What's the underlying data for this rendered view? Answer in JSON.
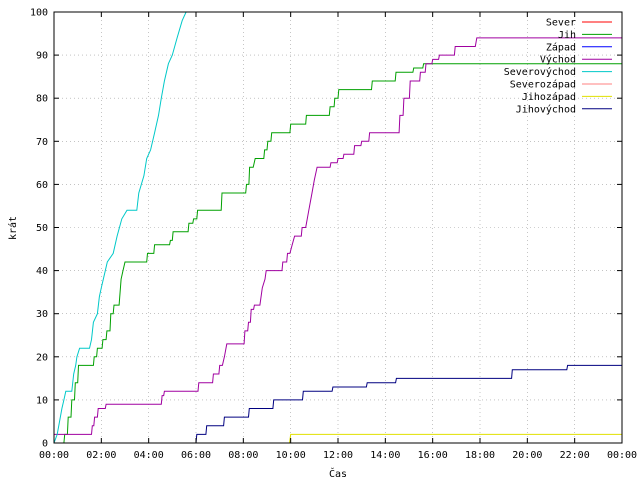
{
  "chart_data": {
    "type": "line",
    "title": "",
    "xlabel": "Čas",
    "ylabel": "krát",
    "xlim": [
      0,
      1440
    ],
    "ylim": [
      0,
      100
    ],
    "x_ticks": [
      {
        "v": 0,
        "label": "00:00"
      },
      {
        "v": 120,
        "label": "02:00"
      },
      {
        "v": 240,
        "label": "04:00"
      },
      {
        "v": 360,
        "label": "06:00"
      },
      {
        "v": 480,
        "label": "08:00"
      },
      {
        "v": 600,
        "label": "10:00"
      },
      {
        "v": 720,
        "label": "12:00"
      },
      {
        "v": 840,
        "label": "14:00"
      },
      {
        "v": 960,
        "label": "16:00"
      },
      {
        "v": 1080,
        "label": "18:00"
      },
      {
        "v": 1200,
        "label": "20:00"
      },
      {
        "v": 1320,
        "label": "22:00"
      },
      {
        "v": 1440,
        "label": "00:00"
      }
    ],
    "y_ticks": [
      0,
      10,
      20,
      30,
      40,
      50,
      60,
      70,
      80,
      90,
      100
    ],
    "grid": true,
    "legend_position": "top-right",
    "series": [
      {
        "name": "Sever",
        "color": "#ff0000",
        "points": []
      },
      {
        "name": "Jih",
        "color": "#00a000",
        "points": [
          [
            0,
            0
          ],
          [
            25,
            0
          ],
          [
            27,
            2
          ],
          [
            34,
            2
          ],
          [
            36,
            6
          ],
          [
            43,
            6
          ],
          [
            45,
            10
          ],
          [
            52,
            10
          ],
          [
            54,
            14
          ],
          [
            60,
            14
          ],
          [
            62,
            18
          ],
          [
            100,
            18
          ],
          [
            102,
            20
          ],
          [
            108,
            20
          ],
          [
            110,
            22
          ],
          [
            122,
            22
          ],
          [
            124,
            24
          ],
          [
            132,
            24
          ],
          [
            134,
            26
          ],
          [
            142,
            26
          ],
          [
            144,
            30
          ],
          [
            150,
            30
          ],
          [
            152,
            32
          ],
          [
            165,
            32
          ],
          [
            170,
            38
          ],
          [
            175,
            40
          ],
          [
            180,
            42
          ],
          [
            235,
            42
          ],
          [
            237,
            44
          ],
          [
            253,
            44
          ],
          [
            255,
            46
          ],
          [
            293,
            46
          ],
          [
            295,
            47
          ],
          [
            300,
            47
          ],
          [
            302,
            49
          ],
          [
            340,
            49
          ],
          [
            342,
            51
          ],
          [
            352,
            51
          ],
          [
            354,
            52
          ],
          [
            362,
            52
          ],
          [
            364,
            54
          ],
          [
            424,
            54
          ],
          [
            426,
            58
          ],
          [
            486,
            58
          ],
          [
            488,
            60
          ],
          [
            494,
            60
          ],
          [
            496,
            64
          ],
          [
            505,
            64
          ],
          [
            510,
            66
          ],
          [
            532,
            66
          ],
          [
            534,
            68
          ],
          [
            540,
            68
          ],
          [
            542,
            70
          ],
          [
            550,
            70
          ],
          [
            552,
            72
          ],
          [
            598,
            72
          ],
          [
            600,
            74
          ],
          [
            638,
            74
          ],
          [
            640,
            76
          ],
          [
            698,
            76
          ],
          [
            700,
            78
          ],
          [
            710,
            78
          ],
          [
            712,
            80
          ],
          [
            720,
            80
          ],
          [
            722,
            82
          ],
          [
            805,
            82
          ],
          [
            807,
            84
          ],
          [
            865,
            84
          ],
          [
            867,
            86
          ],
          [
            910,
            86
          ],
          [
            912,
            87
          ],
          [
            935,
            87
          ],
          [
            937,
            88
          ],
          [
            1440,
            88
          ]
        ]
      },
      {
        "name": "Západ",
        "color": "#0000ff",
        "points": []
      },
      {
        "name": "Východ",
        "color": "#a000a0",
        "points": [
          [
            0,
            2
          ],
          [
            95,
            2
          ],
          [
            97,
            4
          ],
          [
            101,
            4
          ],
          [
            103,
            6
          ],
          [
            110,
            6
          ],
          [
            112,
            8
          ],
          [
            130,
            8
          ],
          [
            132,
            9
          ],
          [
            272,
            9
          ],
          [
            274,
            11
          ],
          [
            278,
            11
          ],
          [
            280,
            12
          ],
          [
            365,
            12
          ],
          [
            367,
            14
          ],
          [
            402,
            14
          ],
          [
            404,
            16
          ],
          [
            418,
            16
          ],
          [
            420,
            18
          ],
          [
            427,
            18
          ],
          [
            432,
            20
          ],
          [
            438,
            23
          ],
          [
            482,
            23
          ],
          [
            484,
            26
          ],
          [
            491,
            26
          ],
          [
            493,
            28
          ],
          [
            498,
            28
          ],
          [
            500,
            31
          ],
          [
            506,
            31
          ],
          [
            508,
            32
          ],
          [
            522,
            32
          ],
          [
            528,
            36
          ],
          [
            535,
            38
          ],
          [
            538,
            40
          ],
          [
            578,
            40
          ],
          [
            580,
            42
          ],
          [
            590,
            42
          ],
          [
            592,
            44
          ],
          [
            598,
            44
          ],
          [
            604,
            46
          ],
          [
            610,
            48
          ],
          [
            627,
            48
          ],
          [
            629,
            50
          ],
          [
            638,
            50
          ],
          [
            646,
            54
          ],
          [
            650,
            56
          ],
          [
            654,
            58
          ],
          [
            660,
            61
          ],
          [
            667,
            64
          ],
          [
            700,
            64
          ],
          [
            702,
            65
          ],
          [
            718,
            65
          ],
          [
            720,
            66
          ],
          [
            733,
            66
          ],
          [
            735,
            67
          ],
          [
            760,
            67
          ],
          [
            762,
            69
          ],
          [
            778,
            69
          ],
          [
            780,
            70
          ],
          [
            798,
            70
          ],
          [
            800,
            72
          ],
          [
            875,
            72
          ],
          [
            877,
            76
          ],
          [
            885,
            76
          ],
          [
            887,
            80
          ],
          [
            901,
            80
          ],
          [
            903,
            84
          ],
          [
            927,
            84
          ],
          [
            929,
            86
          ],
          [
            941,
            86
          ],
          [
            943,
            88
          ],
          [
            958,
            88
          ],
          [
            960,
            89
          ],
          [
            975,
            89
          ],
          [
            977,
            90
          ],
          [
            1015,
            90
          ],
          [
            1017,
            92
          ],
          [
            1068,
            92
          ],
          [
            1072,
            94
          ],
          [
            1440,
            94
          ]
        ]
      },
      {
        "name": "Severovýchod",
        "color": "#00c8c8",
        "points": [
          [
            0,
            0
          ],
          [
            8,
            2
          ],
          [
            20,
            8
          ],
          [
            25,
            10
          ],
          [
            30,
            12
          ],
          [
            45,
            12
          ],
          [
            50,
            16
          ],
          [
            55,
            18
          ],
          [
            58,
            20
          ],
          [
            65,
            22
          ],
          [
            90,
            22
          ],
          [
            95,
            24
          ],
          [
            100,
            28
          ],
          [
            110,
            30
          ],
          [
            115,
            34
          ],
          [
            120,
            36
          ],
          [
            125,
            38
          ],
          [
            130,
            40
          ],
          [
            135,
            42
          ],
          [
            150,
            44
          ],
          [
            160,
            48
          ],
          [
            172,
            52
          ],
          [
            185,
            54
          ],
          [
            210,
            54
          ],
          [
            215,
            58
          ],
          [
            228,
            62
          ],
          [
            235,
            66
          ],
          [
            245,
            68
          ],
          [
            255,
            72
          ],
          [
            265,
            76
          ],
          [
            272,
            80
          ],
          [
            280,
            84
          ],
          [
            290,
            88
          ],
          [
            300,
            90
          ],
          [
            312,
            94
          ],
          [
            325,
            98
          ],
          [
            335,
            100
          ]
        ]
      },
      {
        "name": "Severozápad",
        "color": "#ff8080",
        "points": []
      },
      {
        "name": "Jihozápad",
        "color": "#e0e000",
        "points": [
          [
            0,
            0
          ],
          [
            597,
            0
          ],
          [
            600,
            2
          ],
          [
            1440,
            2
          ]
        ]
      },
      {
        "name": "Jihovýchod",
        "color": "#000080",
        "points": [
          [
            0,
            0
          ],
          [
            360,
            0
          ],
          [
            362,
            2
          ],
          [
            385,
            2
          ],
          [
            387,
            4
          ],
          [
            430,
            4
          ],
          [
            432,
            6
          ],
          [
            493,
            6
          ],
          [
            495,
            8
          ],
          [
            555,
            8
          ],
          [
            557,
            10
          ],
          [
            630,
            10
          ],
          [
            632,
            12
          ],
          [
            705,
            12
          ],
          [
            707,
            13
          ],
          [
            792,
            13
          ],
          [
            794,
            14
          ],
          [
            866,
            14
          ],
          [
            868,
            15
          ],
          [
            1160,
            15
          ],
          [
            1162,
            17
          ],
          [
            1300,
            17
          ],
          [
            1302,
            18
          ],
          [
            1440,
            18
          ]
        ]
      }
    ]
  }
}
